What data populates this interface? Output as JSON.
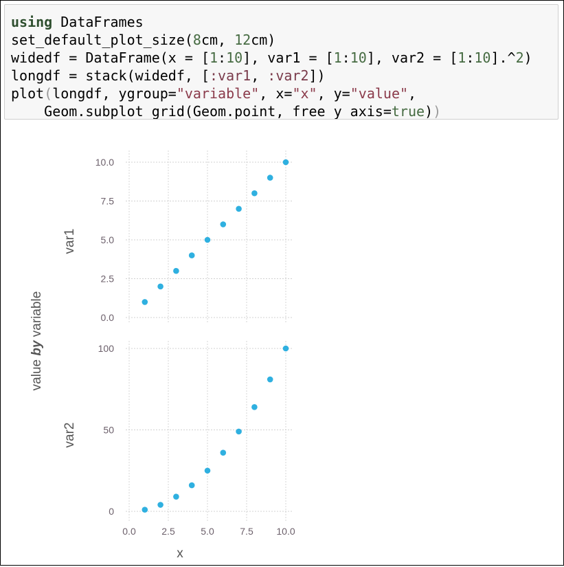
{
  "code_cell": {
    "lines": [
      {
        "tokens": [
          {
            "text": "using",
            "kind": "kw"
          },
          {
            "text": " DataFrames",
            "kind": "plain"
          }
        ]
      },
      {
        "tokens": [
          {
            "text": "set_default_plot_size(",
            "kind": "plain"
          },
          {
            "text": "8",
            "kind": "num"
          },
          {
            "text": "cm, ",
            "kind": "plain"
          },
          {
            "text": "12",
            "kind": "num"
          },
          {
            "text": "cm)",
            "kind": "plain"
          }
        ]
      },
      {
        "tokens": [
          {
            "text": "widedf = DataFrame(x = [",
            "kind": "plain"
          },
          {
            "text": "1",
            "kind": "num"
          },
          {
            "text": ":",
            "kind": "plain"
          },
          {
            "text": "10",
            "kind": "num"
          },
          {
            "text": "], var1 = [",
            "kind": "plain"
          },
          {
            "text": "1",
            "kind": "num"
          },
          {
            "text": ":",
            "kind": "plain"
          },
          {
            "text": "10",
            "kind": "num"
          },
          {
            "text": "], var2 = [",
            "kind": "plain"
          },
          {
            "text": "1",
            "kind": "num"
          },
          {
            "text": ":",
            "kind": "plain"
          },
          {
            "text": "10",
            "kind": "num"
          },
          {
            "text": "].^",
            "kind": "plain"
          },
          {
            "text": "2",
            "kind": "num"
          },
          {
            "text": ")",
            "kind": "plain"
          }
        ]
      },
      {
        "tokens": [
          {
            "text": "longdf = stack(widedf, [",
            "kind": "plain"
          },
          {
            "text": ":var1",
            "kind": "sym"
          },
          {
            "text": ", ",
            "kind": "plain"
          },
          {
            "text": ":var2",
            "kind": "sym"
          },
          {
            "text": "])",
            "kind": "plain"
          }
        ]
      },
      {
        "tokens": [
          {
            "text": "plot",
            "kind": "plain"
          },
          {
            "text": "(",
            "kind": "paren"
          },
          {
            "text": "longdf, ygroup=",
            "kind": "plain"
          },
          {
            "text": "\"variable\"",
            "kind": "str"
          },
          {
            "text": ", x=",
            "kind": "plain"
          },
          {
            "text": "\"x\"",
            "kind": "str"
          },
          {
            "text": ", y=",
            "kind": "plain"
          },
          {
            "text": "\"value\"",
            "kind": "str"
          },
          {
            "text": ",",
            "kind": "plain"
          }
        ]
      },
      {
        "tokens": [
          {
            "text": "    Geom.subplot_grid(Geom.point, free_y_axis=",
            "kind": "plain"
          },
          {
            "text": "true",
            "kind": "num"
          },
          {
            "text": ")",
            "kind": "plain"
          },
          {
            "text": ")",
            "kind": "paren"
          }
        ]
      }
    ]
  },
  "chart_data": {
    "type": "scatter",
    "layout": "subplot_grid",
    "xlabel": "x",
    "ylabel": "value by variable",
    "ylabel_parts": [
      "value",
      "by",
      "variable"
    ],
    "point_color": "#2fb0e0",
    "grid": true,
    "x_ticks": [
      "0.0",
      "2.5",
      "5.0",
      "7.5",
      "10.0"
    ],
    "x_tick_values": [
      0,
      2.5,
      5,
      7.5,
      10
    ],
    "xlim": [
      0,
      10
    ],
    "panels": [
      {
        "name": "var1",
        "x": [
          1,
          2,
          3,
          4,
          5,
          6,
          7,
          8,
          9,
          10
        ],
        "y": [
          1,
          2,
          3,
          4,
          5,
          6,
          7,
          8,
          9,
          10
        ],
        "ylim": [
          0,
          10
        ],
        "y_ticks": [
          "0.0",
          "2.5",
          "5.0",
          "7.5",
          "10.0"
        ],
        "y_tick_values": [
          0,
          2.5,
          5,
          7.5,
          10
        ],
        "show_x_ticks": false
      },
      {
        "name": "var2",
        "x": [
          1,
          2,
          3,
          4,
          5,
          6,
          7,
          8,
          9,
          10
        ],
        "y": [
          1,
          4,
          9,
          16,
          25,
          36,
          49,
          64,
          81,
          100
        ],
        "ylim": [
          0,
          100
        ],
        "y_ticks": [
          "0",
          "50",
          "100"
        ],
        "y_tick_values": [
          0,
          50,
          100
        ],
        "show_x_ticks": true
      }
    ]
  }
}
